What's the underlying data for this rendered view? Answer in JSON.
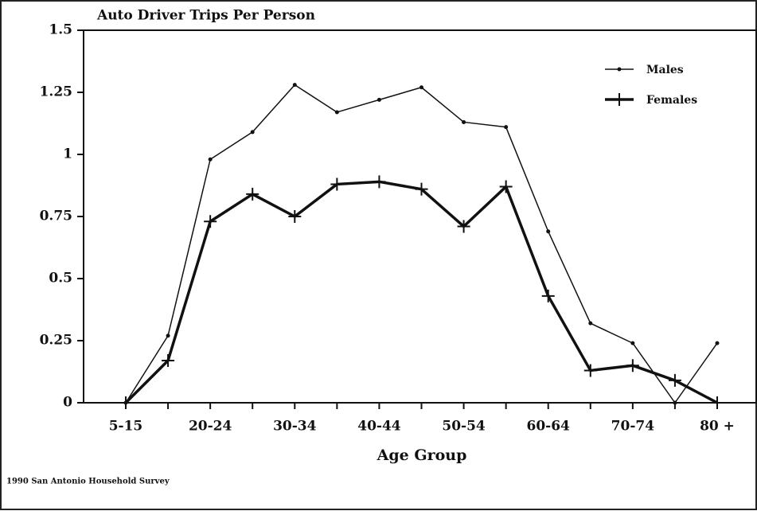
{
  "chart_data": {
    "type": "line",
    "title": "Auto Driver Trips Per Person",
    "x_label": "Age Group",
    "source": "1990 San Antonio Household Survey",
    "categories": [
      "5-15",
      null,
      "20-24",
      null,
      "30-34",
      null,
      "40-44",
      null,
      "50-54",
      null,
      "60-64",
      null,
      "70-74",
      null,
      "80 +"
    ],
    "series": [
      {
        "name": "Males",
        "color": "#111111",
        "marker": "dot",
        "width": 1.5,
        "values": [
          0,
          0.27,
          0.98,
          1.09,
          1.28,
          1.17,
          1.22,
          1.27,
          1.13,
          1.11,
          0.69,
          0.32,
          0.24,
          0,
          0.24
        ]
      },
      {
        "name": "Females",
        "color": "#111111",
        "marker": "plus",
        "width": 3.5,
        "values": [
          0,
          0.17,
          0.73,
          0.84,
          0.75,
          0.88,
          0.89,
          0.86,
          0.71,
          0.87,
          0.43,
          0.13,
          0.15,
          0.09,
          0
        ]
      }
    ],
    "ylim": [
      0,
      1.5
    ],
    "yticks": [
      0,
      0.25,
      0.5,
      0.75,
      1,
      1.25,
      1.5
    ],
    "legend": "upper right"
  }
}
